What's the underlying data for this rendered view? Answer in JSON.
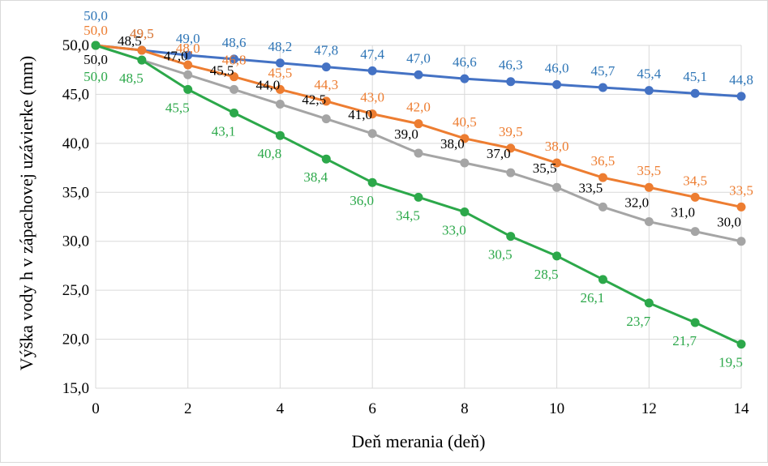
{
  "chart_data": {
    "type": "line",
    "title": "",
    "xlabel": "Deň merania (deň)",
    "ylabel": "Výška vody h v zápachovej uzávierke (mm)",
    "x": [
      0,
      1,
      2,
      3,
      4,
      5,
      6,
      7,
      8,
      9,
      10,
      11,
      12,
      13,
      14
    ],
    "xlim": [
      0,
      14
    ],
    "ylim": [
      15,
      50
    ],
    "x_ticks": [
      "0",
      "2",
      "4",
      "6",
      "8",
      "10",
      "12",
      "14"
    ],
    "y_ticks": [
      "15,0",
      "20,0",
      "25,0",
      "30,0",
      "35,0",
      "40,0",
      "45,0",
      "50,0"
    ],
    "grid": true,
    "legend": "none",
    "series": [
      {
        "color": "#4472c4",
        "label_color": "#2e75b6",
        "values": [
          50.0,
          49.5,
          49.0,
          48.6,
          48.2,
          47.8,
          47.4,
          47.0,
          46.6,
          46.3,
          46.0,
          45.7,
          45.4,
          45.1,
          44.8
        ],
        "labels": [
          "50,0",
          "49,5",
          "49,0",
          "48,6",
          "48,2",
          "47,8",
          "47,4",
          "47,0",
          "46,6",
          "46,3",
          "46,0",
          "45,7",
          "45,4",
          "45,1",
          "44,8"
        ]
      },
      {
        "color": "#ed7d31",
        "label_color": "#ed7d31",
        "values": [
          50.0,
          49.5,
          48.0,
          46.8,
          45.5,
          44.3,
          43.0,
          42.0,
          40.5,
          39.5,
          38.0,
          36.5,
          35.5,
          34.5,
          33.5
        ],
        "labels": [
          "50,0",
          "49,5",
          "48,0",
          "46,8",
          "45,5",
          "44,3",
          "43,0",
          "42,0",
          "40,5",
          "39,5",
          "38,0",
          "36,5",
          "35,5",
          "34,5",
          "33,5"
        ]
      },
      {
        "color": "#a5a5a5",
        "label_color": "#000000",
        "values": [
          50.0,
          48.5,
          47.0,
          45.5,
          44.0,
          42.5,
          41.0,
          39.0,
          38.0,
          37.0,
          35.5,
          33.5,
          32.0,
          31.0,
          30.0
        ],
        "labels": [
          "50,0",
          "48,5",
          "47,0",
          "45,5",
          "44,0",
          "42,5",
          "41,0",
          "39,0",
          "38,0",
          "37,0",
          "35,5",
          "33,5",
          "32,0",
          "31,0",
          "30,0"
        ]
      },
      {
        "color": "#2ca84a",
        "label_color": "#2ca84a",
        "values": [
          50.0,
          48.5,
          45.5,
          43.1,
          40.8,
          38.4,
          36.0,
          34.5,
          33.0,
          30.5,
          28.5,
          26.1,
          23.7,
          21.7,
          19.5
        ],
        "labels": [
          "50,0",
          "48,5",
          "45,5",
          "43,1",
          "40,8",
          "38,4",
          "36,0",
          "34,5",
          "33,0",
          "30,5",
          "28,5",
          "26,1",
          "23,7",
          "21,7",
          "19,5"
        ]
      }
    ]
  }
}
